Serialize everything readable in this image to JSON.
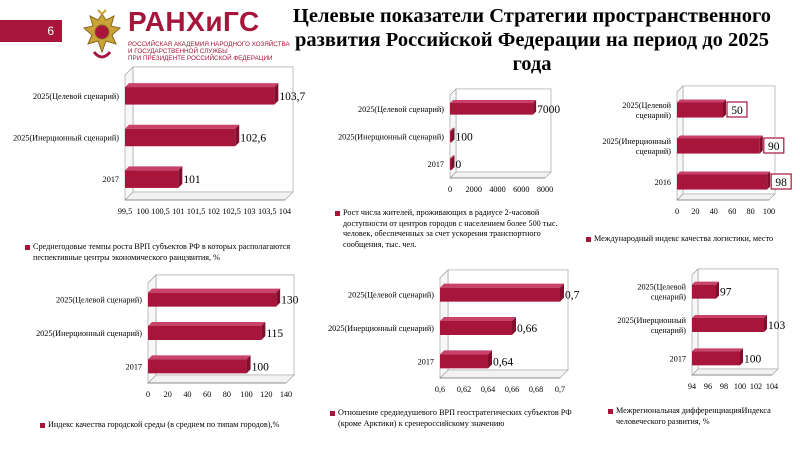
{
  "slide_number": "6",
  "logo": {
    "name": "РАНХиГС",
    "subtitle_lines": [
      "РОССИЙСКАЯ АКАДЕМИЯ НАРОДНОГО ХОЗЯЙСТВА",
      "И ГОСУДАРСТВЕННОЙ СЛУЖБЫ",
      "ПРИ ПРЕЗИДЕНТЕ РОССИЙСКОЙ ФЕДЕРАЦИИ"
    ]
  },
  "title": "Целевые показатели Стратегии пространственного развития Российской Федерации на период до 2025 года",
  "colors": {
    "bar": "#a7153b",
    "bar_top": "#c8426a",
    "accent": "#a7153b"
  },
  "chart_data": [
    {
      "type": "bar",
      "orientation": "horizontal",
      "categories": [
        "2025(Целевой сценарий)",
        "2025(Инерционный сценарий)",
        "2017"
      ],
      "values": [
        103.7,
        102.6,
        101
      ],
      "value_labels": [
        "103,7",
        "102,6",
        "101"
      ],
      "xlim": [
        99.5,
        104
      ],
      "ticks": [
        99.5,
        100,
        100.5,
        101,
        101.5,
        102,
        102.5,
        103,
        103.5,
        104
      ],
      "tick_labels": [
        "99,5",
        "100",
        "100,5",
        "101",
        "101,5",
        "102",
        "102,5",
        "103",
        "103,5",
        "104"
      ],
      "legend": [
        "Среднегодовые темпы роста ВРП субъектов РФ в которых располагаются",
        "пеcпективные центры экономического раицзвития, %"
      ],
      "boxed_labels": false
    },
    {
      "type": "bar",
      "orientation": "horizontal",
      "categories": [
        "2025(Целевой сценарий)",
        "2025(Инерционный сценарий)",
        "2017"
      ],
      "values": [
        7000,
        100,
        0
      ],
      "value_labels": [
        "7000",
        "100",
        "0"
      ],
      "xlim": [
        0,
        8000
      ],
      "ticks": [
        0,
        2000,
        4000,
        6000,
        8000
      ],
      "tick_labels": [
        "0",
        "2000",
        "4000",
        "6000",
        "8000"
      ],
      "legend": [
        "Рост числа жителей, проживающих в радиусе 2-часовой",
        "доступности от центров городов с населением более 500 тыс.",
        "человек, обеспеченных за счет ускорения транспортного",
        "сообщения, тыс. чел."
      ],
      "boxed_labels": false
    },
    {
      "type": "bar",
      "orientation": "horizontal",
      "categories": [
        "2025(Целевой сценарий)",
        "2025(Инерционный сценарий)",
        "2016"
      ],
      "values": [
        50,
        90,
        98
      ],
      "value_labels": [
        "50",
        "90",
        "98"
      ],
      "xlim": [
        0,
        100
      ],
      "ticks": [
        0,
        20,
        40,
        60,
        80,
        100
      ],
      "tick_labels": [
        "0",
        "20",
        "40",
        "60",
        "80",
        "100"
      ],
      "legend": [
        "Международный индекс качества логистики, место"
      ],
      "boxed_labels": true
    },
    {
      "type": "bar",
      "orientation": "horizontal",
      "categories": [
        "2025(Целевой сценарий)",
        "2025(Инерционный сценарий)",
        "2017"
      ],
      "values": [
        130,
        115,
        100
      ],
      "value_labels": [
        "130",
        "115",
        "100"
      ],
      "xlim": [
        0,
        140
      ],
      "ticks": [
        0,
        20,
        40,
        60,
        80,
        100,
        120,
        140
      ],
      "tick_labels": [
        "0",
        "20",
        "40",
        "60",
        "80",
        "100",
        "120",
        "140"
      ],
      "legend": [
        "Индекс качества городской среды (в среднем по типам городов),%"
      ],
      "boxed_labels": false
    },
    {
      "type": "bar",
      "orientation": "horizontal",
      "categories": [
        "2025(Целевой сценарий)",
        "2025(Инерционный сценарий)",
        "2017"
      ],
      "values": [
        0.7,
        0.66,
        0.64
      ],
      "value_labels": [
        "0,7",
        "0,66",
        "0,64"
      ],
      "xlim": [
        0.6,
        0.7
      ],
      "ticks": [
        0.6,
        0.62,
        0.64,
        0.66,
        0.68,
        0.7
      ],
      "tick_labels": [
        "0,6",
        "0,62",
        "0,64",
        "0,66",
        "0,68",
        "0,7"
      ],
      "legend": [
        "Отношение среднедушевого ВРП геостратегических субъектов РФ",
        "(кроме Арктики) к сренероссийскому значению"
      ],
      "boxed_labels": false
    },
    {
      "type": "bar",
      "orientation": "horizontal",
      "categories": [
        "2025(Целевой сценарий)",
        "2025(Инерционный сценарий)",
        "2017"
      ],
      "values": [
        97,
        103,
        100
      ],
      "value_labels": [
        "97",
        "103",
        "100"
      ],
      "xlim": [
        94,
        104
      ],
      "ticks": [
        94,
        96,
        98,
        100,
        102,
        104
      ],
      "tick_labels": [
        "94",
        "96",
        "98",
        "100",
        "102",
        "104"
      ],
      "legend": [
        "Межрегиональная дифференциацияИндекса",
        "человеческого развития, %"
      ],
      "boxed_labels": false
    }
  ]
}
